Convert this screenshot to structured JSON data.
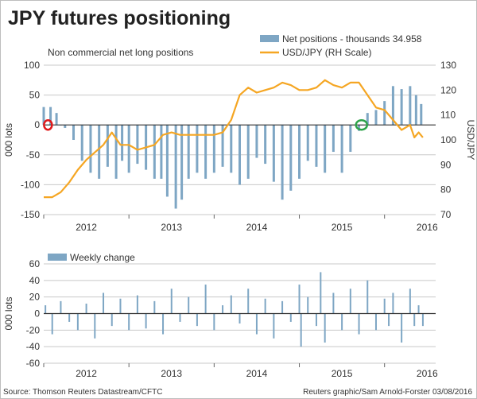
{
  "header": {
    "title": "JPY futures positioning"
  },
  "footer": {
    "source": "Source: Thomson Reuters Datastream/CFTC",
    "credit": "Reuters graphic/Sam Arnold-Forster 03/08/2016"
  },
  "colors": {
    "bars": "#7ea6c4",
    "line": "#f5a623",
    "grid": "#c8c8c8",
    "zero": "#333333",
    "marker_start": "#e0191b",
    "marker_end": "#2ea34a",
    "background": "#ffffff"
  },
  "chart_data": [
    {
      "type": "bar",
      "subtitle": "Non commercial net long positions",
      "ylabel": "000 lots",
      "y2label": "USD/JPY",
      "ylim": [
        -150,
        100
      ],
      "y_ticks": [
        100,
        50,
        0,
        -50,
        -100,
        -150
      ],
      "y2lim": [
        70,
        130
      ],
      "y2_ticks": [
        130,
        120,
        110,
        100,
        90,
        80,
        70
      ],
      "xlim": [
        2012.0,
        2016.6
      ],
      "x_ticks": [
        {
          "label": "2012",
          "x": 2012
        },
        {
          "label": "2013",
          "x": 2013
        },
        {
          "label": "2014",
          "x": 2014
        },
        {
          "label": "2015",
          "x": 2015
        },
        {
          "label": "2016",
          "x": 2016
        }
      ],
      "legend": [
        "Net positions - thousands 34.958",
        "USD/JPY (RH Scale)"
      ],
      "legend_position": "top-right",
      "grid": true,
      "series": [
        {
          "name": "Net positions - thousands 34.958",
          "kind": "bar",
          "x": [
            2012.0,
            2012.08,
            2012.15,
            2012.2,
            2012.25,
            2012.35,
            2012.45,
            2012.55,
            2012.65,
            2012.75,
            2012.85,
            2012.92,
            2013.0,
            2013.1,
            2013.2,
            2013.3,
            2013.38,
            2013.45,
            2013.55,
            2013.62,
            2013.7,
            2013.8,
            2013.9,
            2014.0,
            2014.1,
            2014.2,
            2014.3,
            2014.4,
            2014.5,
            2014.6,
            2014.7,
            2014.8,
            2014.9,
            2015.0,
            2015.1,
            2015.2,
            2015.3,
            2015.4,
            2015.5,
            2015.6,
            2015.7,
            2015.73,
            2015.8,
            2015.9,
            2016.0,
            2016.1,
            2016.2,
            2016.3,
            2016.37,
            2016.43
          ],
          "values": [
            30,
            30,
            20,
            0,
            -5,
            -25,
            -60,
            -80,
            -90,
            -70,
            -90,
            -60,
            -80,
            -65,
            -75,
            -90,
            -90,
            -120,
            -140,
            -125,
            -90,
            -80,
            -90,
            -80,
            -70,
            -80,
            -100,
            -90,
            -55,
            -65,
            -95,
            -125,
            -110,
            -90,
            -60,
            -70,
            -80,
            -45,
            -80,
            -45,
            -10,
            0,
            20,
            25,
            40,
            65,
            60,
            65,
            50,
            35
          ]
        },
        {
          "name": "USD/JPY (RH Scale)",
          "kind": "line",
          "axis": "right",
          "x": [
            2012.0,
            2012.1,
            2012.2,
            2012.3,
            2012.4,
            2012.5,
            2012.6,
            2012.7,
            2012.8,
            2012.9,
            2013.0,
            2013.1,
            2013.2,
            2013.3,
            2013.4,
            2013.5,
            2013.6,
            2013.7,
            2013.8,
            2013.9,
            2014.0,
            2014.1,
            2014.2,
            2014.3,
            2014.4,
            2014.5,
            2014.6,
            2014.7,
            2014.8,
            2014.9,
            2015.0,
            2015.1,
            2015.2,
            2015.3,
            2015.4,
            2015.5,
            2015.6,
            2015.7,
            2015.8,
            2015.9,
            2016.0,
            2016.1,
            2016.2,
            2016.3,
            2016.35,
            2016.4,
            2016.45
          ],
          "values": [
            77,
            77,
            79,
            83,
            88,
            92,
            95,
            98,
            103,
            98,
            98,
            96,
            97,
            98,
            102,
            103,
            102,
            102,
            102,
            102,
            102,
            103,
            108,
            118,
            121,
            119,
            120,
            121,
            123,
            122,
            120,
            120,
            121,
            124,
            122,
            121,
            123,
            123,
            118,
            113,
            112,
            108,
            104,
            106,
            101,
            103,
            101
          ]
        }
      ],
      "annotations": [
        {
          "kind": "circle",
          "color": "red",
          "x": 2012.05,
          "y": 0
        },
        {
          "kind": "circle",
          "color": "green",
          "x": 2015.73,
          "y": 0
        }
      ]
    },
    {
      "type": "bar",
      "ylabel": "000 lots",
      "ylim": [
        -60,
        60
      ],
      "y_ticks": [
        60,
        40,
        20,
        0,
        -20,
        -40,
        -60
      ],
      "xlim": [
        2012.0,
        2016.6
      ],
      "x_ticks": [
        {
          "label": "2012",
          "x": 2012
        },
        {
          "label": "2013",
          "x": 2013
        },
        {
          "label": "2014",
          "x": 2014
        },
        {
          "label": "2015",
          "x": 2015
        },
        {
          "label": "2016",
          "x": 2016
        }
      ],
      "legend": [
        "Weekly change"
      ],
      "legend_position": "top-left",
      "grid": true,
      "series": [
        {
          "name": "Weekly change",
          "x": [
            2012.02,
            2012.1,
            2012.2,
            2012.3,
            2012.4,
            2012.5,
            2012.6,
            2012.7,
            2012.8,
            2012.9,
            2013.0,
            2013.1,
            2013.2,
            2013.3,
            2013.4,
            2013.5,
            2013.6,
            2013.7,
            2013.8,
            2013.9,
            2014.0,
            2014.1,
            2014.2,
            2014.3,
            2014.4,
            2014.5,
            2014.6,
            2014.7,
            2014.8,
            2014.9,
            2015.0,
            2015.02,
            2015.1,
            2015.2,
            2015.25,
            2015.3,
            2015.4,
            2015.5,
            2015.6,
            2015.7,
            2015.8,
            2015.9,
            2016.0,
            2016.05,
            2016.1,
            2016.2,
            2016.3,
            2016.35,
            2016.4,
            2016.45
          ],
          "values": [
            10,
            -25,
            15,
            -10,
            -20,
            12,
            -30,
            25,
            -15,
            18,
            -20,
            22,
            -18,
            15,
            -25,
            30,
            -10,
            20,
            -15,
            35,
            -20,
            10,
            22,
            -12,
            30,
            -25,
            18,
            -30,
            15,
            -10,
            35,
            -40,
            20,
            -15,
            50,
            -35,
            25,
            -20,
            30,
            -25,
            40,
            -20,
            18,
            -15,
            25,
            -35,
            30,
            -15,
            10,
            -15
          ]
        }
      ]
    }
  ]
}
